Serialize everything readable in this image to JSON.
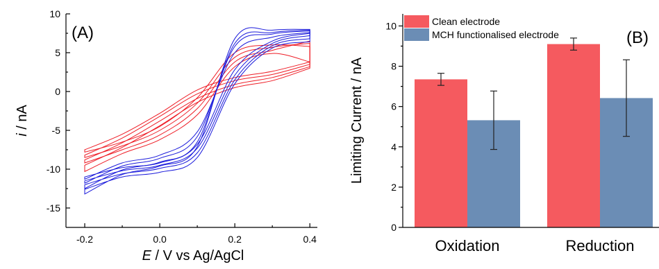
{
  "chart_data": [
    {
      "type": "line",
      "panel_label": "(A)",
      "xlabel_italic": "E",
      "xlabel_rest": " / V vs Ag/AgCl",
      "ylabel_italic": "i",
      "ylabel_rest": " / nA",
      "xlim": [
        -0.25,
        0.42
      ],
      "ylim": [
        -17.5,
        10
      ],
      "x_ticks": [
        -0.2,
        0.0,
        0.2,
        0.4
      ],
      "x_tick_labels": [
        "-0.2",
        "0.0",
        "0.2",
        "0.4"
      ],
      "y_ticks": [
        -15,
        -10,
        -5,
        0,
        5,
        10
      ],
      "y_tick_labels": [
        "-15",
        "-10",
        "-5",
        "0",
        "5",
        "10"
      ],
      "colors": {
        "clean": "#ee1c25",
        "functionalised": "#1a1adb"
      },
      "series": [
        {
          "color_key": "clean",
          "kind": "cv",
          "x": [
            -0.2,
            -0.1,
            0.0,
            0.1,
            0.2,
            0.3,
            0.4
          ],
          "forward": [
            -7.5,
            -5.5,
            -2.8,
            0.2,
            1.8,
            2.6,
            3.8
          ],
          "reverse": [
            -7.8,
            -6.5,
            -4.5,
            -0.8,
            5.0,
            6.0,
            5.8
          ]
        },
        {
          "color_key": "clean",
          "kind": "cv",
          "x": [
            -0.2,
            -0.1,
            0.0,
            0.1,
            0.2,
            0.3,
            0.4
          ],
          "forward": [
            -8.2,
            -6.0,
            -3.2,
            -0.3,
            1.4,
            2.2,
            3.5
          ],
          "reverse": [
            -8.5,
            -7.0,
            -5.0,
            -1.5,
            4.4,
            5.7,
            6.2
          ]
        },
        {
          "color_key": "clean",
          "kind": "cv",
          "x": [
            -0.2,
            -0.1,
            0.0,
            0.1,
            0.2,
            0.3,
            0.4
          ],
          "forward": [
            -8.8,
            -6.6,
            -3.8,
            -0.9,
            0.9,
            1.8,
            3.2
          ],
          "reverse": [
            -9.2,
            -7.5,
            -5.6,
            -2.2,
            3.8,
            5.3,
            6.5
          ]
        },
        {
          "color_key": "clean",
          "kind": "cv",
          "x": [
            -0.2,
            -0.1,
            0.0,
            0.1,
            0.2,
            0.3,
            0.4
          ],
          "forward": [
            -9.5,
            -7.2,
            -4.4,
            -1.4,
            0.5,
            1.4,
            3.0
          ],
          "reverse": [
            -10.3,
            -8.0,
            -6.2,
            -3.0,
            3.2,
            4.9,
            3.8
          ]
        },
        {
          "color_key": "functionalised",
          "kind": "cv",
          "x": [
            -0.2,
            -0.1,
            0.0,
            0.1,
            0.2,
            0.3,
            0.4
          ],
          "forward": [
            -11.3,
            -9.2,
            -8.2,
            -5.2,
            5.0,
            7.0,
            7.6
          ],
          "reverse": [
            -11.0,
            -9.8,
            -9.2,
            -6.8,
            2.8,
            6.5,
            7.5
          ]
        },
        {
          "color_key": "functionalised",
          "kind": "cv",
          "x": [
            -0.2,
            -0.1,
            0.0,
            0.1,
            0.2,
            0.3,
            0.4
          ],
          "forward": [
            -11.8,
            -9.6,
            -8.6,
            -5.8,
            5.8,
            7.4,
            7.8
          ],
          "reverse": [
            -11.5,
            -10.2,
            -9.5,
            -7.3,
            2.1,
            6.2,
            7.2
          ]
        },
        {
          "color_key": "functionalised",
          "kind": "cv",
          "x": [
            -0.2,
            -0.1,
            0.0,
            0.1,
            0.2,
            0.3,
            0.4
          ],
          "forward": [
            -12.5,
            -10.1,
            -9.1,
            -6.5,
            6.2,
            7.6,
            7.9
          ],
          "reverse": [
            -12.0,
            -10.6,
            -9.9,
            -7.9,
            1.5,
            5.9,
            6.8
          ]
        },
        {
          "color_key": "functionalised",
          "kind": "cv",
          "x": [
            -0.2,
            -0.1,
            0.0,
            0.1,
            0.2,
            0.3,
            0.4
          ],
          "forward": [
            -13.2,
            -10.7,
            -9.6,
            -7.1,
            6.8,
            7.9,
            8.0
          ],
          "reverse": [
            -12.6,
            -11.0,
            -10.4,
            -8.5,
            1.0,
            5.6,
            6.4
          ]
        }
      ]
    },
    {
      "type": "bar",
      "panel_label": "(B)",
      "ylabel": "Limiting Current / nA",
      "ylim": [
        0,
        10.6
      ],
      "y_ticks": [
        0,
        2,
        4,
        6,
        8,
        10
      ],
      "y_tick_labels": [
        "0",
        "2",
        "4",
        "6",
        "8",
        "10"
      ],
      "categories": [
        "Oxidation",
        "Reduction"
      ],
      "series": [
        {
          "name": "Clean electrode",
          "color": "#f55a5f",
          "values": [
            7.35,
            9.1
          ],
          "errors": [
            0.3,
            0.3
          ]
        },
        {
          "name": "MCH functionalised electrode",
          "color": "#6b8db5",
          "values": [
            5.32,
            6.42
          ],
          "errors": [
            1.45,
            1.9
          ]
        }
      ]
    }
  ]
}
